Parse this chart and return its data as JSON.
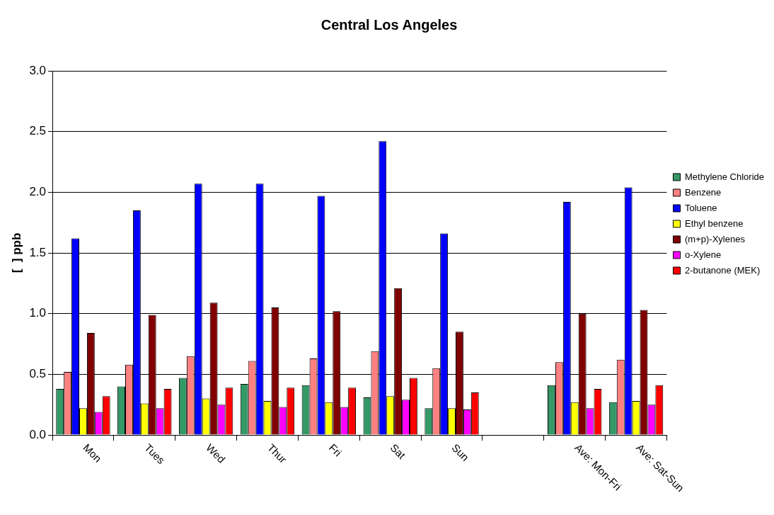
{
  "chart_data": {
    "type": "bar",
    "title": "Central Los Angeles",
    "ylabel": "[  ] ppb",
    "categories": [
      "Mon",
      "Tues",
      "Wed",
      "Thur",
      "Fri",
      "Sat",
      "Sun",
      null,
      "Ave: Mon-Fri",
      "Ave: Sat-Sun"
    ],
    "series": [
      {
        "name": "Methylene Chloride",
        "color": "#339966",
        "values": [
          0.38,
          0.4,
          0.47,
          0.42,
          0.41,
          0.31,
          0.22,
          null,
          0.41,
          0.27
        ]
      },
      {
        "name": "Benzene",
        "color": "#ff8080",
        "values": [
          0.52,
          0.58,
          0.65,
          0.61,
          0.63,
          0.69,
          0.55,
          null,
          0.6,
          0.62
        ]
      },
      {
        "name": "Toluene",
        "color": "#0000ff",
        "values": [
          1.62,
          1.85,
          2.07,
          2.07,
          1.97,
          2.42,
          1.66,
          null,
          1.92,
          2.04
        ]
      },
      {
        "name": "Ethyl benzene",
        "color": "#ffff00",
        "values": [
          0.22,
          0.26,
          0.3,
          0.28,
          0.27,
          0.32,
          0.22,
          null,
          0.27,
          0.28
        ]
      },
      {
        "name": "(m+p)-Xylenes",
        "color": "#800000",
        "values": [
          0.84,
          0.99,
          1.09,
          1.05,
          1.02,
          1.21,
          0.85,
          null,
          1.0,
          1.03
        ]
      },
      {
        "name": "o-Xylene",
        "color": "#ff00ff",
        "values": [
          0.19,
          0.22,
          0.25,
          0.23,
          0.23,
          0.29,
          0.21,
          null,
          0.22,
          0.25
        ]
      },
      {
        "name": "2-butanone (MEK)",
        "color": "#ff0000",
        "values": [
          0.32,
          0.38,
          0.39,
          0.39,
          0.39,
          0.47,
          0.35,
          null,
          0.38,
          0.41
        ]
      }
    ],
    "ylim": [
      0,
      3
    ],
    "yticks": [
      {
        "value": 0,
        "label": "0.0"
      },
      {
        "value": 0.5,
        "label": "0.5"
      },
      {
        "value": 1,
        "label": "1.0"
      },
      {
        "value": 1.5,
        "label": "1.5"
      },
      {
        "value": 2,
        "label": "2.0"
      },
      {
        "value": 2.5,
        "label": "2.5"
      },
      {
        "value": 3,
        "label": "3.0"
      }
    ],
    "grid": "y",
    "legend": "right"
  }
}
